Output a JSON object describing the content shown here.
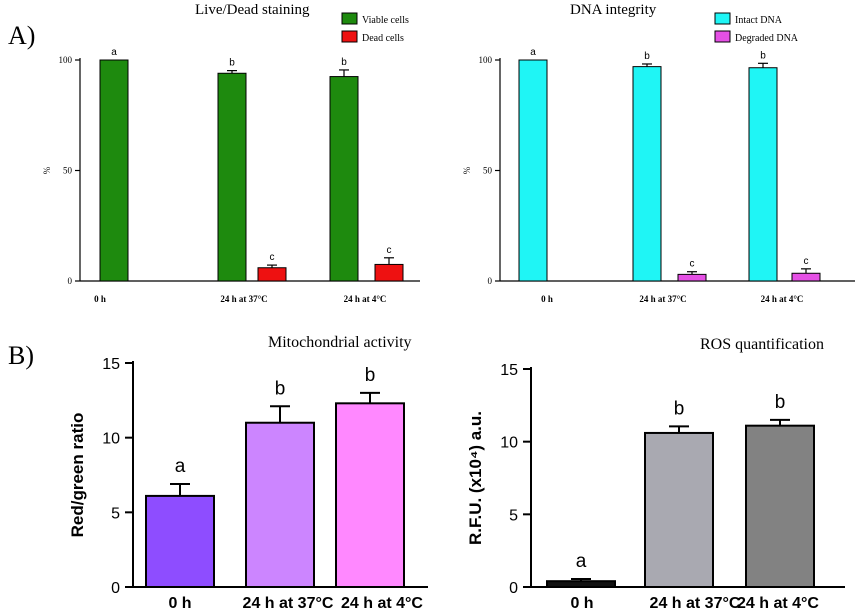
{
  "panels": {
    "a_label": "A)",
    "b_label": "B)"
  },
  "chart_data": [
    {
      "id": "live_dead",
      "type": "bar",
      "title": "Live/Dead staining",
      "ylabel": "%",
      "xlabel": "",
      "ylim": [
        0,
        100
      ],
      "yticks": [
        0,
        50,
        100
      ],
      "categories": [
        "0 h",
        "24 h at 37°C",
        "24 h at 4°C"
      ],
      "series": [
        {
          "name": "Viable cells",
          "color": "#1e8a0e",
          "values": [
            100,
            94,
            92.5
          ],
          "errors": [
            0,
            1.2,
            3
          ],
          "labels": [
            "a",
            "b",
            "b"
          ]
        },
        {
          "name": "Dead cells",
          "color": "#ee1111",
          "values": [
            null,
            6,
            7.5
          ],
          "errors": [
            0,
            1.2,
            3
          ],
          "labels": [
            "",
            "c",
            "c"
          ]
        }
      ],
      "legend": "top-right"
    },
    {
      "id": "dna_integrity",
      "type": "bar",
      "title": "DNA integrity",
      "ylabel": "%",
      "xlabel": "",
      "ylim": [
        0,
        100
      ],
      "yticks": [
        0,
        50,
        100
      ],
      "categories": [
        "0 h",
        "24 h at 37°C",
        "24 h at 4°C"
      ],
      "series": [
        {
          "name": "Intact DNA",
          "color": "#1ff5f5",
          "values": [
            100,
            97,
            96.5
          ],
          "errors": [
            0,
            1.2,
            2
          ],
          "labels": [
            "a",
            "b",
            "b"
          ]
        },
        {
          "name": "Degraded DNA",
          "color": "#e550e5",
          "values": [
            null,
            3,
            3.5
          ],
          "errors": [
            0,
            1.2,
            2
          ],
          "labels": [
            "",
            "c",
            "c"
          ]
        }
      ],
      "legend": "top-right"
    },
    {
      "id": "mito",
      "type": "bar",
      "title": "Mitochondrial activity",
      "ylabel": "Red/green ratio",
      "xlabel": "",
      "ylim": [
        0,
        15
      ],
      "yticks": [
        0,
        5,
        10,
        15
      ],
      "categories": [
        "0 h",
        "24 h at 37°C",
        "24 h at 4°C"
      ],
      "series": [
        {
          "name": "Red/green ratio",
          "colors": [
            "#8e4dff",
            "#cc85ff",
            "#ff88ff"
          ],
          "values": [
            6.1,
            11.0,
            12.3
          ],
          "errors": [
            0.8,
            1.1,
            0.7
          ],
          "labels": [
            "a",
            "b",
            "b"
          ]
        }
      ]
    },
    {
      "id": "ros",
      "type": "bar",
      "title": "ROS quantification",
      "ylabel": "R.F.U. (x10⁴) a.u.",
      "xlabel": "",
      "ylim": [
        0,
        15
      ],
      "yticks": [
        0,
        5,
        10,
        15
      ],
      "categories": [
        "0 h",
        "24 h at 37°C",
        "24 h at  4°C"
      ],
      "series": [
        {
          "name": "R.F.U.",
          "colors": [
            "#111111",
            "#a9a9b1",
            "#828282"
          ],
          "values": [
            0.4,
            10.6,
            11.1
          ],
          "errors": [
            0.15,
            0.45,
            0.4
          ],
          "labels": [
            "a",
            "b",
            "b"
          ]
        }
      ]
    }
  ]
}
